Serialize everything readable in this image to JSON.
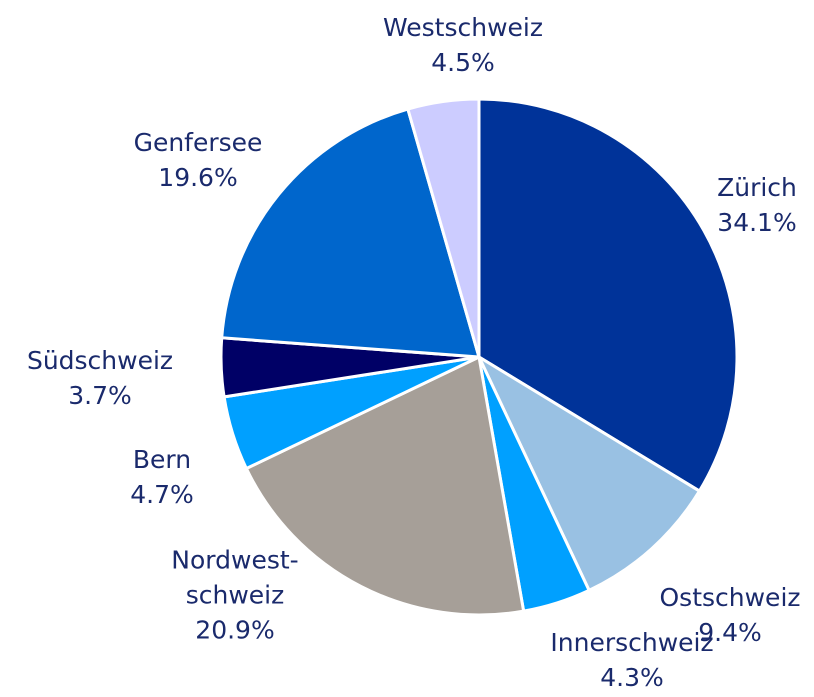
{
  "chart_data": {
    "type": "pie",
    "categories": [
      "Zürich",
      "Ostschweiz",
      "Innerschweiz",
      "Nordwest-\nschweiz",
      "Bern",
      "Südschweiz",
      "Genfersee",
      "Westschweiz"
    ],
    "values": [
      34.1,
      9.4,
      4.3,
      20.9,
      4.7,
      3.7,
      19.6,
      4.5
    ],
    "value_labels": [
      "34.1%",
      "9.4%",
      "4.3%",
      "20.9%",
      "4.7%",
      "3.7%",
      "19.6%",
      "4.5%"
    ],
    "colors": [
      "#003399",
      "#99c1e3",
      "#00a0ff",
      "#a69f98",
      "#00a0ff",
      "#000066",
      "#0066cc",
      "#ccccff"
    ]
  }
}
